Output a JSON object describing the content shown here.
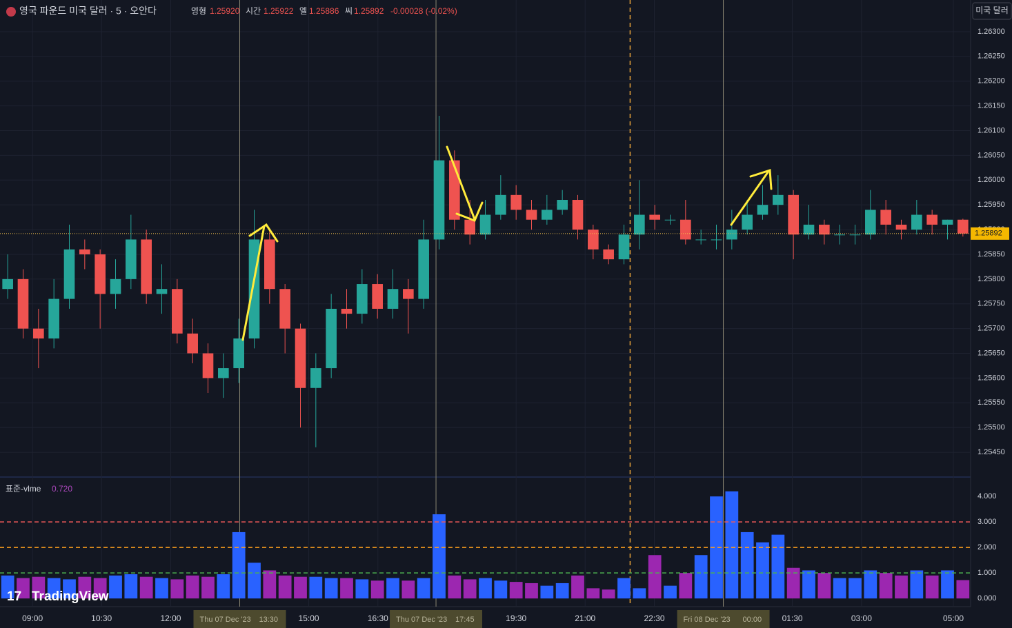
{
  "chart_data": {
    "type": "candlestick",
    "header": {
      "symbol": "영국 파운드 미국 달러 · 5 · 오안다",
      "open_label": "영형",
      "open": "1.25920",
      "high_label": "시간",
      "high": "1.25922",
      "low_label": "엘",
      "low": "1.25886",
      "close_label": "씨",
      "close": "1.25892",
      "change": "-0.00028 (-0.02%)"
    },
    "currency_button": "미국 달러",
    "watermark": "TradingView",
    "last_price": {
      "value": 1.25892,
      "label": "1.25892"
    },
    "up_color": "#26a69a",
    "down_color": "#ef5350",
    "xlim": [
      -0.5,
      62.5
    ],
    "xticks": [
      {
        "value": 1.61,
        "label": "09:00"
      },
      {
        "value": 6.09,
        "label": "10:30"
      },
      {
        "value": 10.58,
        "label": "12:00"
      },
      {
        "value": 19.54,
        "label": "15:00"
      },
      {
        "value": 24.03,
        "label": "16:30"
      },
      {
        "value": 33.0,
        "label": "19:30"
      },
      {
        "value": 37.48,
        "label": "21:00"
      },
      {
        "value": 41.97,
        "label": "22:30"
      },
      {
        "value": 50.93,
        "label": "01:30"
      },
      {
        "value": 55.42,
        "label": "03:00"
      },
      {
        "value": 61.38,
        "label": "05:00"
      }
    ],
    "markers": [
      {
        "x": 15.06,
        "date": "Thu 07 Dec '23",
        "time": "13:30"
      },
      {
        "x": 27.8,
        "date": "Thu 07 Dec '23",
        "time": "17:45"
      },
      {
        "x": 46.45,
        "date": "Fri 08 Dec '23",
        "time": "00:00"
      }
    ],
    "session_break": 40.4,
    "ylim": [
      1.254,
      1.26364
    ],
    "yticks": [
      {
        "value": 1.2545,
        "label": "1.25450"
      },
      {
        "value": 1.255,
        "label": "1.25500"
      },
      {
        "value": 1.2555,
        "label": "1.25550"
      },
      {
        "value": 1.256,
        "label": "1.25600"
      },
      {
        "value": 1.2565,
        "label": "1.25650"
      },
      {
        "value": 1.257,
        "label": "1.25700"
      },
      {
        "value": 1.2575,
        "label": "1.25750"
      },
      {
        "value": 1.258,
        "label": "1.25800"
      },
      {
        "value": 1.2585,
        "label": "1.25850"
      },
      {
        "value": 1.259,
        "label": "1.25900"
      },
      {
        "value": 1.2595,
        "label": "1.25950"
      },
      {
        "value": 1.26,
        "label": "1.26000"
      },
      {
        "value": 1.2605,
        "label": "1.26050"
      },
      {
        "value": 1.261,
        "label": "1.26100"
      },
      {
        "value": 1.2615,
        "label": "1.26150"
      },
      {
        "value": 1.262,
        "label": "1.26200"
      },
      {
        "value": 1.2625,
        "label": "1.26250"
      },
      {
        "value": 1.263,
        "label": "1.26300"
      }
    ],
    "open": [
      1.2578,
      1.258,
      1.257,
      1.2568,
      1.2576,
      1.2586,
      1.2585,
      1.2577,
      1.258,
      1.2588,
      1.2577,
      1.2578,
      1.2569,
      1.2565,
      1.256,
      1.2562,
      1.2568,
      1.2588,
      1.2578,
      1.257,
      1.2558,
      1.2562,
      1.2574,
      1.2573,
      1.2579,
      1.2574,
      1.2578,
      1.2576,
      1.2588,
      1.2604,
      1.2592,
      1.2589,
      1.2593,
      1.2597,
      1.2594,
      1.2592,
      1.2594,
      1.2596,
      1.259,
      1.2586,
      1.2584,
      1.2589,
      1.2593,
      1.2592,
      1.2592,
      1.2588,
      1.2588,
      1.2588,
      1.259,
      1.2593,
      1.2595,
      1.2597,
      1.2589,
      1.2591,
      1.2589,
      1.2589,
      1.2589,
      1.2594,
      1.2591,
      1.259,
      1.2593,
      1.2591,
      1.2592
    ],
    "high": [
      1.2585,
      1.2582,
      1.2574,
      1.258,
      1.2591,
      1.2588,
      1.2586,
      1.2584,
      1.2593,
      1.259,
      1.2583,
      1.258,
      1.2572,
      1.2567,
      1.2565,
      1.2572,
      1.2594,
      1.259,
      1.2579,
      1.2571,
      1.2565,
      1.2577,
      1.2578,
      1.2582,
      1.2581,
      1.2582,
      1.258,
      1.2592,
      1.2613,
      1.2606,
      1.2596,
      1.2596,
      1.2601,
      1.2599,
      1.2596,
      1.2597,
      1.2598,
      1.2597,
      1.2591,
      1.2587,
      1.2591,
      1.26,
      1.2595,
      1.2593,
      1.2596,
      1.259,
      1.2591,
      1.2594,
      1.2596,
      1.2599,
      1.2601,
      1.2598,
      1.2595,
      1.2592,
      1.2591,
      1.2591,
      1.2598,
      1.2596,
      1.2592,
      1.2596,
      1.2594,
      1.2592,
      1.25922
    ],
    "low": [
      1.2576,
      1.2568,
      1.2562,
      1.2566,
      1.2574,
      1.2582,
      1.257,
      1.2574,
      1.2578,
      1.2575,
      1.2573,
      1.2567,
      1.2563,
      1.2557,
      1.2556,
      1.2559,
      1.2566,
      1.2575,
      1.2565,
      1.255,
      1.2546,
      1.256,
      1.257,
      1.2571,
      1.2572,
      1.2572,
      1.2569,
      1.2574,
      1.2586,
      1.259,
      1.2587,
      1.2588,
      1.2592,
      1.2592,
      1.259,
      1.2591,
      1.2593,
      1.2588,
      1.2584,
      1.2583,
      1.2583,
      1.2586,
      1.259,
      1.2591,
      1.2587,
      1.2587,
      1.2586,
      1.2586,
      1.2589,
      1.2592,
      1.2593,
      1.2584,
      1.2588,
      1.2587,
      1.2587,
      1.2587,
      1.2588,
      1.2589,
      1.2588,
      1.2589,
      1.2589,
      1.2588,
      1.25886
    ],
    "close": [
      1.258,
      1.257,
      1.2568,
      1.2576,
      1.2586,
      1.2585,
      1.2577,
      1.258,
      1.2588,
      1.2577,
      1.2578,
      1.2569,
      1.2565,
      1.256,
      1.2562,
      1.2568,
      1.2588,
      1.2578,
      1.257,
      1.2558,
      1.2562,
      1.2574,
      1.2573,
      1.2579,
      1.2574,
      1.2578,
      1.2576,
      1.2588,
      1.2604,
      1.2592,
      1.2589,
      1.2593,
      1.2597,
      1.2594,
      1.2592,
      1.2594,
      1.2596,
      1.259,
      1.2586,
      1.2584,
      1.2589,
      1.2593,
      1.2592,
      1.2592,
      1.2588,
      1.2588,
      1.2588,
      1.259,
      1.2593,
      1.2595,
      1.2597,
      1.2589,
      1.2591,
      1.2589,
      1.2589,
      1.2589,
      1.2594,
      1.2591,
      1.259,
      1.2593,
      1.2591,
      1.2592,
      1.25892
    ],
    "volume": {
      "title": "표준-vlme",
      "last": "0.720",
      "up_color": "#2962ff",
      "down_color": "#9c27b0",
      "values": [
        0.9,
        0.8,
        0.85,
        0.8,
        0.75,
        0.85,
        0.8,
        0.9,
        0.95,
        0.85,
        0.8,
        0.75,
        0.9,
        0.85,
        0.95,
        2.6,
        1.4,
        1.1,
        0.9,
        0.85,
        0.85,
        0.8,
        0.8,
        0.75,
        0.7,
        0.8,
        0.7,
        0.8,
        3.3,
        0.9,
        0.75,
        0.8,
        0.7,
        0.65,
        0.6,
        0.5,
        0.6,
        0.9,
        0.4,
        0.35,
        0.8,
        0.4,
        1.7,
        0.5,
        1.0,
        1.7,
        4.0,
        4.2,
        2.6,
        2.2,
        2.5,
        1.2,
        1.1,
        1.0,
        0.8,
        0.8,
        1.1,
        1.0,
        0.9,
        1.1,
        0.9,
        1.1,
        0.72
      ],
      "ylim": [
        -0.32,
        4.76
      ],
      "yticks": [
        {
          "value": 0,
          "label": "0.000"
        },
        {
          "value": 1,
          "label": "1.000"
        },
        {
          "value": 2,
          "label": "2.000"
        },
        {
          "value": 3,
          "label": "3.000"
        },
        {
          "value": 4,
          "label": "4.000"
        }
      ],
      "levels": [
        {
          "value": 3,
          "color": "#f05a5a"
        },
        {
          "value": 2,
          "color": "#ff9f1c"
        },
        {
          "value": 1,
          "color": "#4caf50"
        }
      ]
    }
  }
}
